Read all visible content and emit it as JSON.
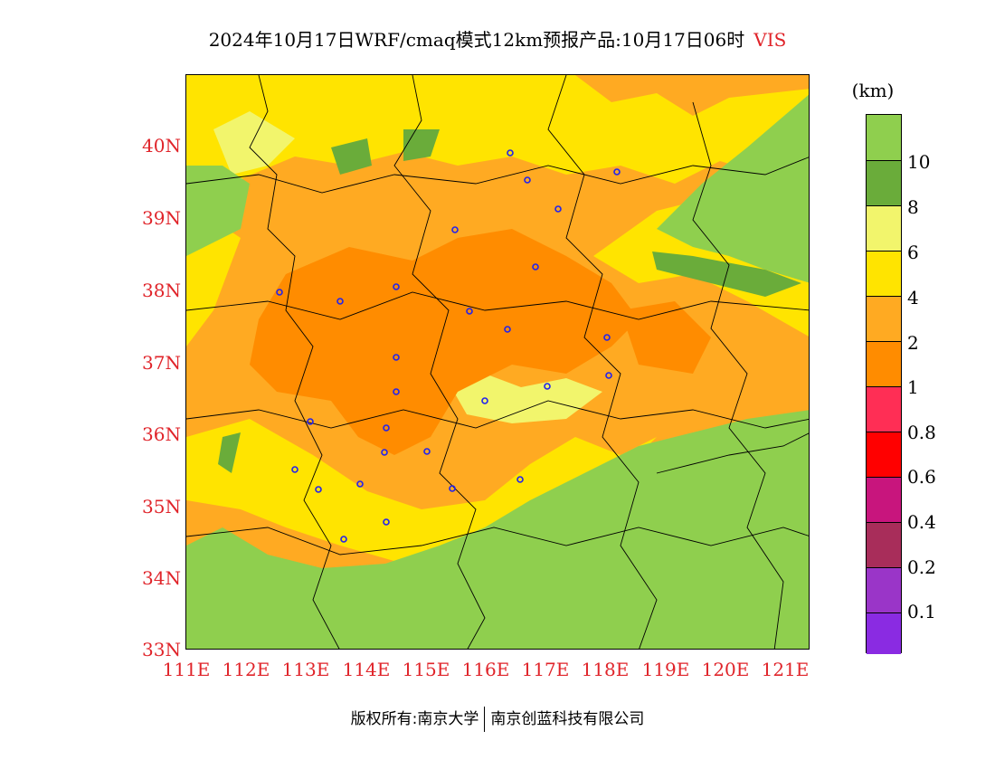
{
  "title": "2024年10月17日WRF/cmaq模式12km预报产品:10月17日06时",
  "variable": "VIS",
  "unit": "(km)",
  "map": {
    "lat_labels": [
      "40N",
      "39N",
      "38N",
      "37N",
      "36N",
      "35N",
      "34N",
      "33N"
    ],
    "lon_labels": [
      "111E",
      "112E",
      "113E",
      "114E",
      "115E",
      "116E",
      "117E",
      "118E",
      "119E",
      "120E",
      "121E"
    ],
    "lat_range": [
      33,
      41
    ],
    "lon_range": [
      111,
      121.4
    ],
    "colors": {
      "ge10": "#8fcf4e",
      "8to10": "#6aac3a",
      "6to8": "#f2f56c",
      "4to6": "#ffe400",
      "2to4": "#ffaa22",
      "1to2": "#ff8c00",
      "station": "#2222ee"
    }
  },
  "colorbar": {
    "colors": [
      "#8fcf4e",
      "#6aac3a",
      "#f2f56c",
      "#ffe400",
      "#ffaa22",
      "#ff8c00",
      "#ff2e55",
      "#ff0000",
      "#c8157d",
      "#a82d5a",
      "#9a35c8",
      "#8a2be2"
    ],
    "labels": [
      "10",
      "8",
      "6",
      "4",
      "2",
      "1",
      "0.8",
      "0.6",
      "0.4",
      "0.2",
      "0.1"
    ]
  },
  "copyright": {
    "left": "版权所有:南京大学",
    "right": "南京创蓝科技有限公司"
  }
}
